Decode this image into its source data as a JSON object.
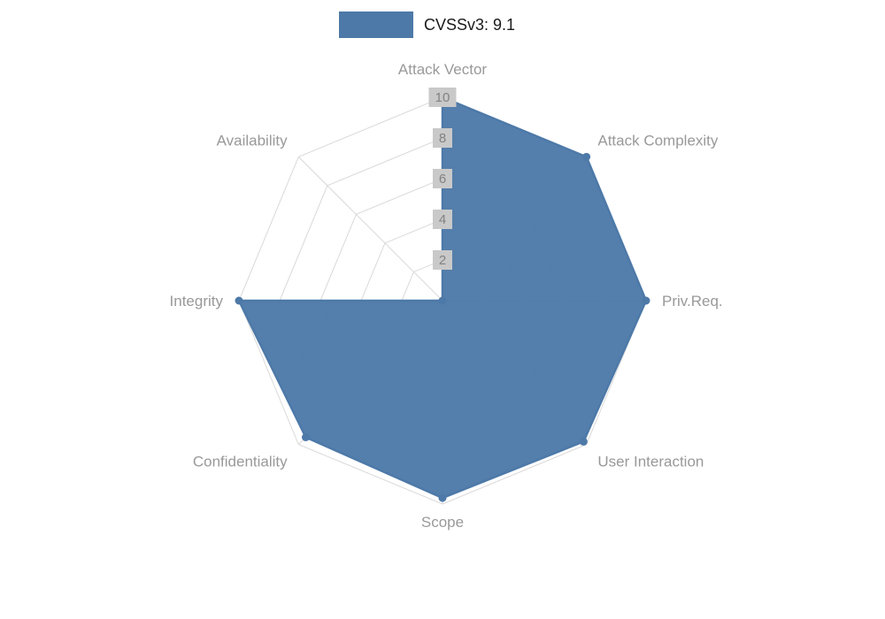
{
  "chart_data": {
    "type": "radar",
    "title": "CVSSv3: 9.1",
    "categories": [
      "Attack Vector",
      "Attack Complexity",
      "Priv.Req.",
      "User Interaction",
      "Scope",
      "Confidentiality",
      "Integrity",
      "Availability"
    ],
    "series": [
      {
        "name": "CVSSv3: 9.1",
        "values": [
          10,
          10,
          10,
          9.8,
          9.7,
          9.5,
          10,
          0
        ]
      }
    ],
    "radial_ticks": [
      2,
      4,
      6,
      8,
      10
    ],
    "range": [
      0,
      10
    ],
    "grid": "on",
    "legend_position": "top-center",
    "colors": {
      "series_fill": "#4d79a8",
      "grid": "#d9d9d9",
      "axis_label": "#999999",
      "tick_text": "#828282",
      "tick_chip_bg": "#c9c9c9",
      "legend_text": "#1a1a1a"
    }
  }
}
